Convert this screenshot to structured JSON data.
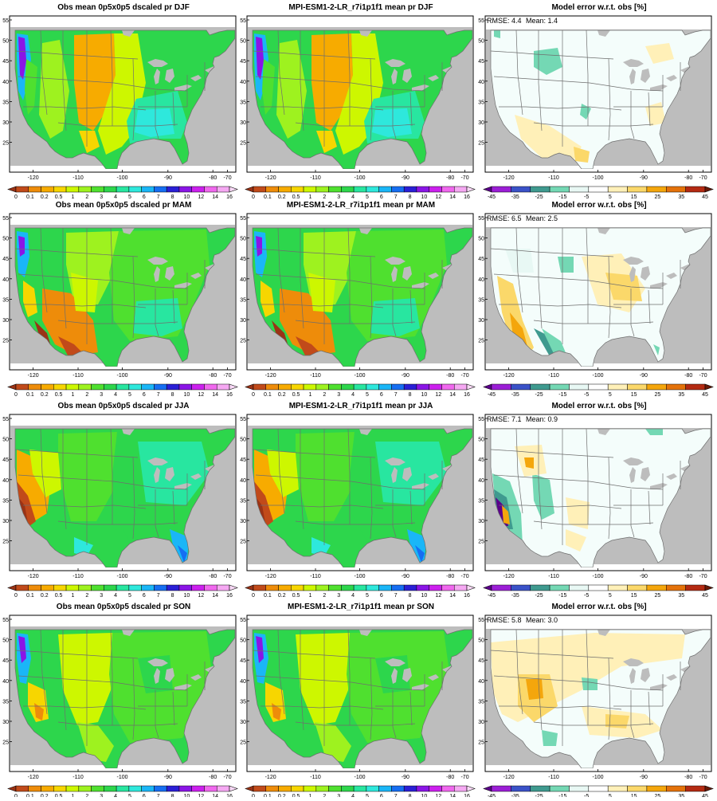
{
  "precip_colorbar": {
    "labels": [
      "0",
      "0.1",
      "0.2",
      "0.5",
      "1",
      "2",
      "3",
      "4",
      "5",
      "6",
      "7",
      "8",
      "10",
      "12",
      "14",
      "16"
    ],
    "colors": [
      "#9a3316",
      "#c14a1a",
      "#ee8c0a",
      "#f7ab00",
      "#f7d600",
      "#cdf700",
      "#9ef21f",
      "#4fe02f",
      "#2dd64c",
      "#28e6a0",
      "#2ee8dc",
      "#1ab6f7",
      "#166ef2",
      "#2a1fd6",
      "#8a15e6",
      "#cc20ee",
      "#f068ee",
      "#f5a8f2",
      "#f8d8f6"
    ]
  },
  "error_colorbar": {
    "labels": [
      "-45",
      "-35",
      "-25",
      "-15",
      "-5",
      "5",
      "15",
      "25",
      "35",
      "45"
    ],
    "colors": [
      "#5b008a",
      "#9b1ed6",
      "#3a52c8",
      "#3f9a8f",
      "#74d8b4",
      "#e8f8f4",
      "#ffffff",
      "#fff0b8",
      "#fbd86a",
      "#f4a60c",
      "#e4720a",
      "#b42a12",
      "#6a1a08"
    ]
  },
  "map_axes": {
    "lon_ticks": [
      "-120",
      "-110",
      "-100",
      "-90",
      "-80",
      "-70"
    ],
    "lat_ticks": [
      "55",
      "50",
      "45",
      "40",
      "35",
      "30",
      "25"
    ]
  },
  "rows": [
    {
      "season": "DJF",
      "obs_title": "Obs mean 0p5x0p5 dscaled pr DJF",
      "model_title": "MPI-ESM1-2-LR_r7i1p1f1 mean pr DJF",
      "error_title": "Model error w.r.t. obs [%]",
      "rmse_text": "RMSE: 4.4",
      "mean_text": "Mean: 1.4"
    },
    {
      "season": "MAM",
      "obs_title": "Obs mean 0p5x0p5 dscaled pr MAM",
      "model_title": "MPI-ESM1-2-LR_r7i1p1f1 mean pr MAM",
      "error_title": "Model error w.r.t. obs [%]",
      "rmse_text": "RMSE: 6.5",
      "mean_text": "Mean: 2.5"
    },
    {
      "season": "JJA",
      "obs_title": "Obs mean 0p5x0p5 dscaled pr JJA",
      "model_title": "MPI-ESM1-2-LR_r7i1p1f1 mean pr JJA",
      "error_title": "Model error w.r.t. obs [%]",
      "rmse_text": "RMSE: 7.1",
      "mean_text": "Mean: 0.9"
    },
    {
      "season": "SON",
      "obs_title": "Obs mean 0p5x0p5 dscaled pr SON",
      "model_title": "MPI-ESM1-2-LR_r7i1p1f1 mean pr SON",
      "error_title": "Model error w.r.t. obs [%]",
      "rmse_text": "RMSE: 5.8",
      "mean_text": "Mean: 3.0"
    }
  ],
  "colors": {
    "ocean": "#bdbdbd",
    "border": "#6e6e6e",
    "frame": "#000000"
  }
}
